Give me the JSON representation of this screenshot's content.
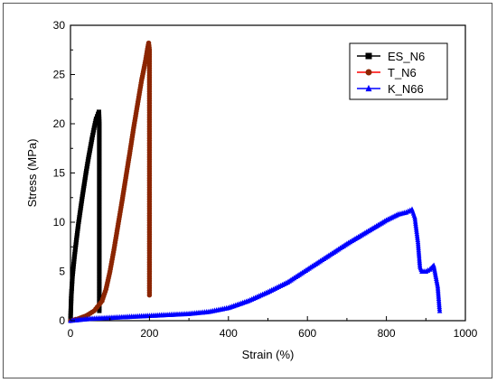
{
  "chart_data": {
    "type": "line",
    "title": "",
    "xlabel": "Strain (%)",
    "ylabel": "Stress (MPa)",
    "xlim": [
      0,
      1000
    ],
    "ylim": [
      0,
      30
    ],
    "x_ticks": [
      0,
      200,
      400,
      600,
      800,
      1000
    ],
    "y_ticks": [
      0,
      5,
      10,
      15,
      20,
      25,
      30
    ],
    "legend_position": "top-right",
    "grid": false,
    "series": [
      {
        "name": "ES_N6",
        "color": "#000000",
        "marker": "square",
        "x": [
          0,
          2,
          5,
          10,
          15,
          20,
          25,
          30,
          35,
          40,
          45,
          50,
          55,
          60,
          65,
          70,
          72,
          73,
          73,
          73,
          73,
          73,
          73,
          73
        ],
        "y": [
          0,
          2.5,
          4.5,
          6.5,
          8.2,
          9.8,
          11.2,
          12.6,
          13.9,
          15.2,
          16.4,
          17.5,
          18.6,
          19.6,
          20.5,
          21.0,
          21.2,
          20.0,
          17.0,
          13.0,
          9.0,
          5.0,
          2.5,
          1.0
        ]
      },
      {
        "name": "T_N6",
        "color": "#8b2500",
        "line_color": "#ff0000",
        "marker": "circle",
        "x": [
          0,
          20,
          40,
          60,
          80,
          90,
          100,
          110,
          120,
          130,
          140,
          150,
          160,
          170,
          180,
          190,
          195,
          198,
          200,
          200,
          200,
          200,
          200,
          200,
          200
        ],
        "y": [
          0,
          0.2,
          0.5,
          1.0,
          2.0,
          3.2,
          5.0,
          7.2,
          9.6,
          12.0,
          14.5,
          17.0,
          19.6,
          22.0,
          24.4,
          26.4,
          27.6,
          28.2,
          27.5,
          24.0,
          19.0,
          14.0,
          9.0,
          5.0,
          2.6
        ]
      },
      {
        "name": "K_N66",
        "color": "#0000ff",
        "marker": "triangle",
        "x": [
          0,
          50,
          100,
          200,
          300,
          350,
          400,
          450,
          500,
          550,
          600,
          650,
          700,
          750,
          800,
          830,
          850,
          865,
          872,
          880,
          885,
          890,
          900,
          910,
          920,
          930,
          935
        ],
        "y": [
          0,
          0.2,
          0.3,
          0.5,
          0.7,
          0.9,
          1.3,
          2.0,
          2.9,
          3.9,
          5.2,
          6.5,
          7.8,
          9.0,
          10.2,
          10.8,
          11.0,
          11.3,
          10.5,
          8.0,
          5.5,
          5.0,
          5.0,
          5.2,
          5.6,
          3.5,
          1.0
        ]
      }
    ]
  }
}
